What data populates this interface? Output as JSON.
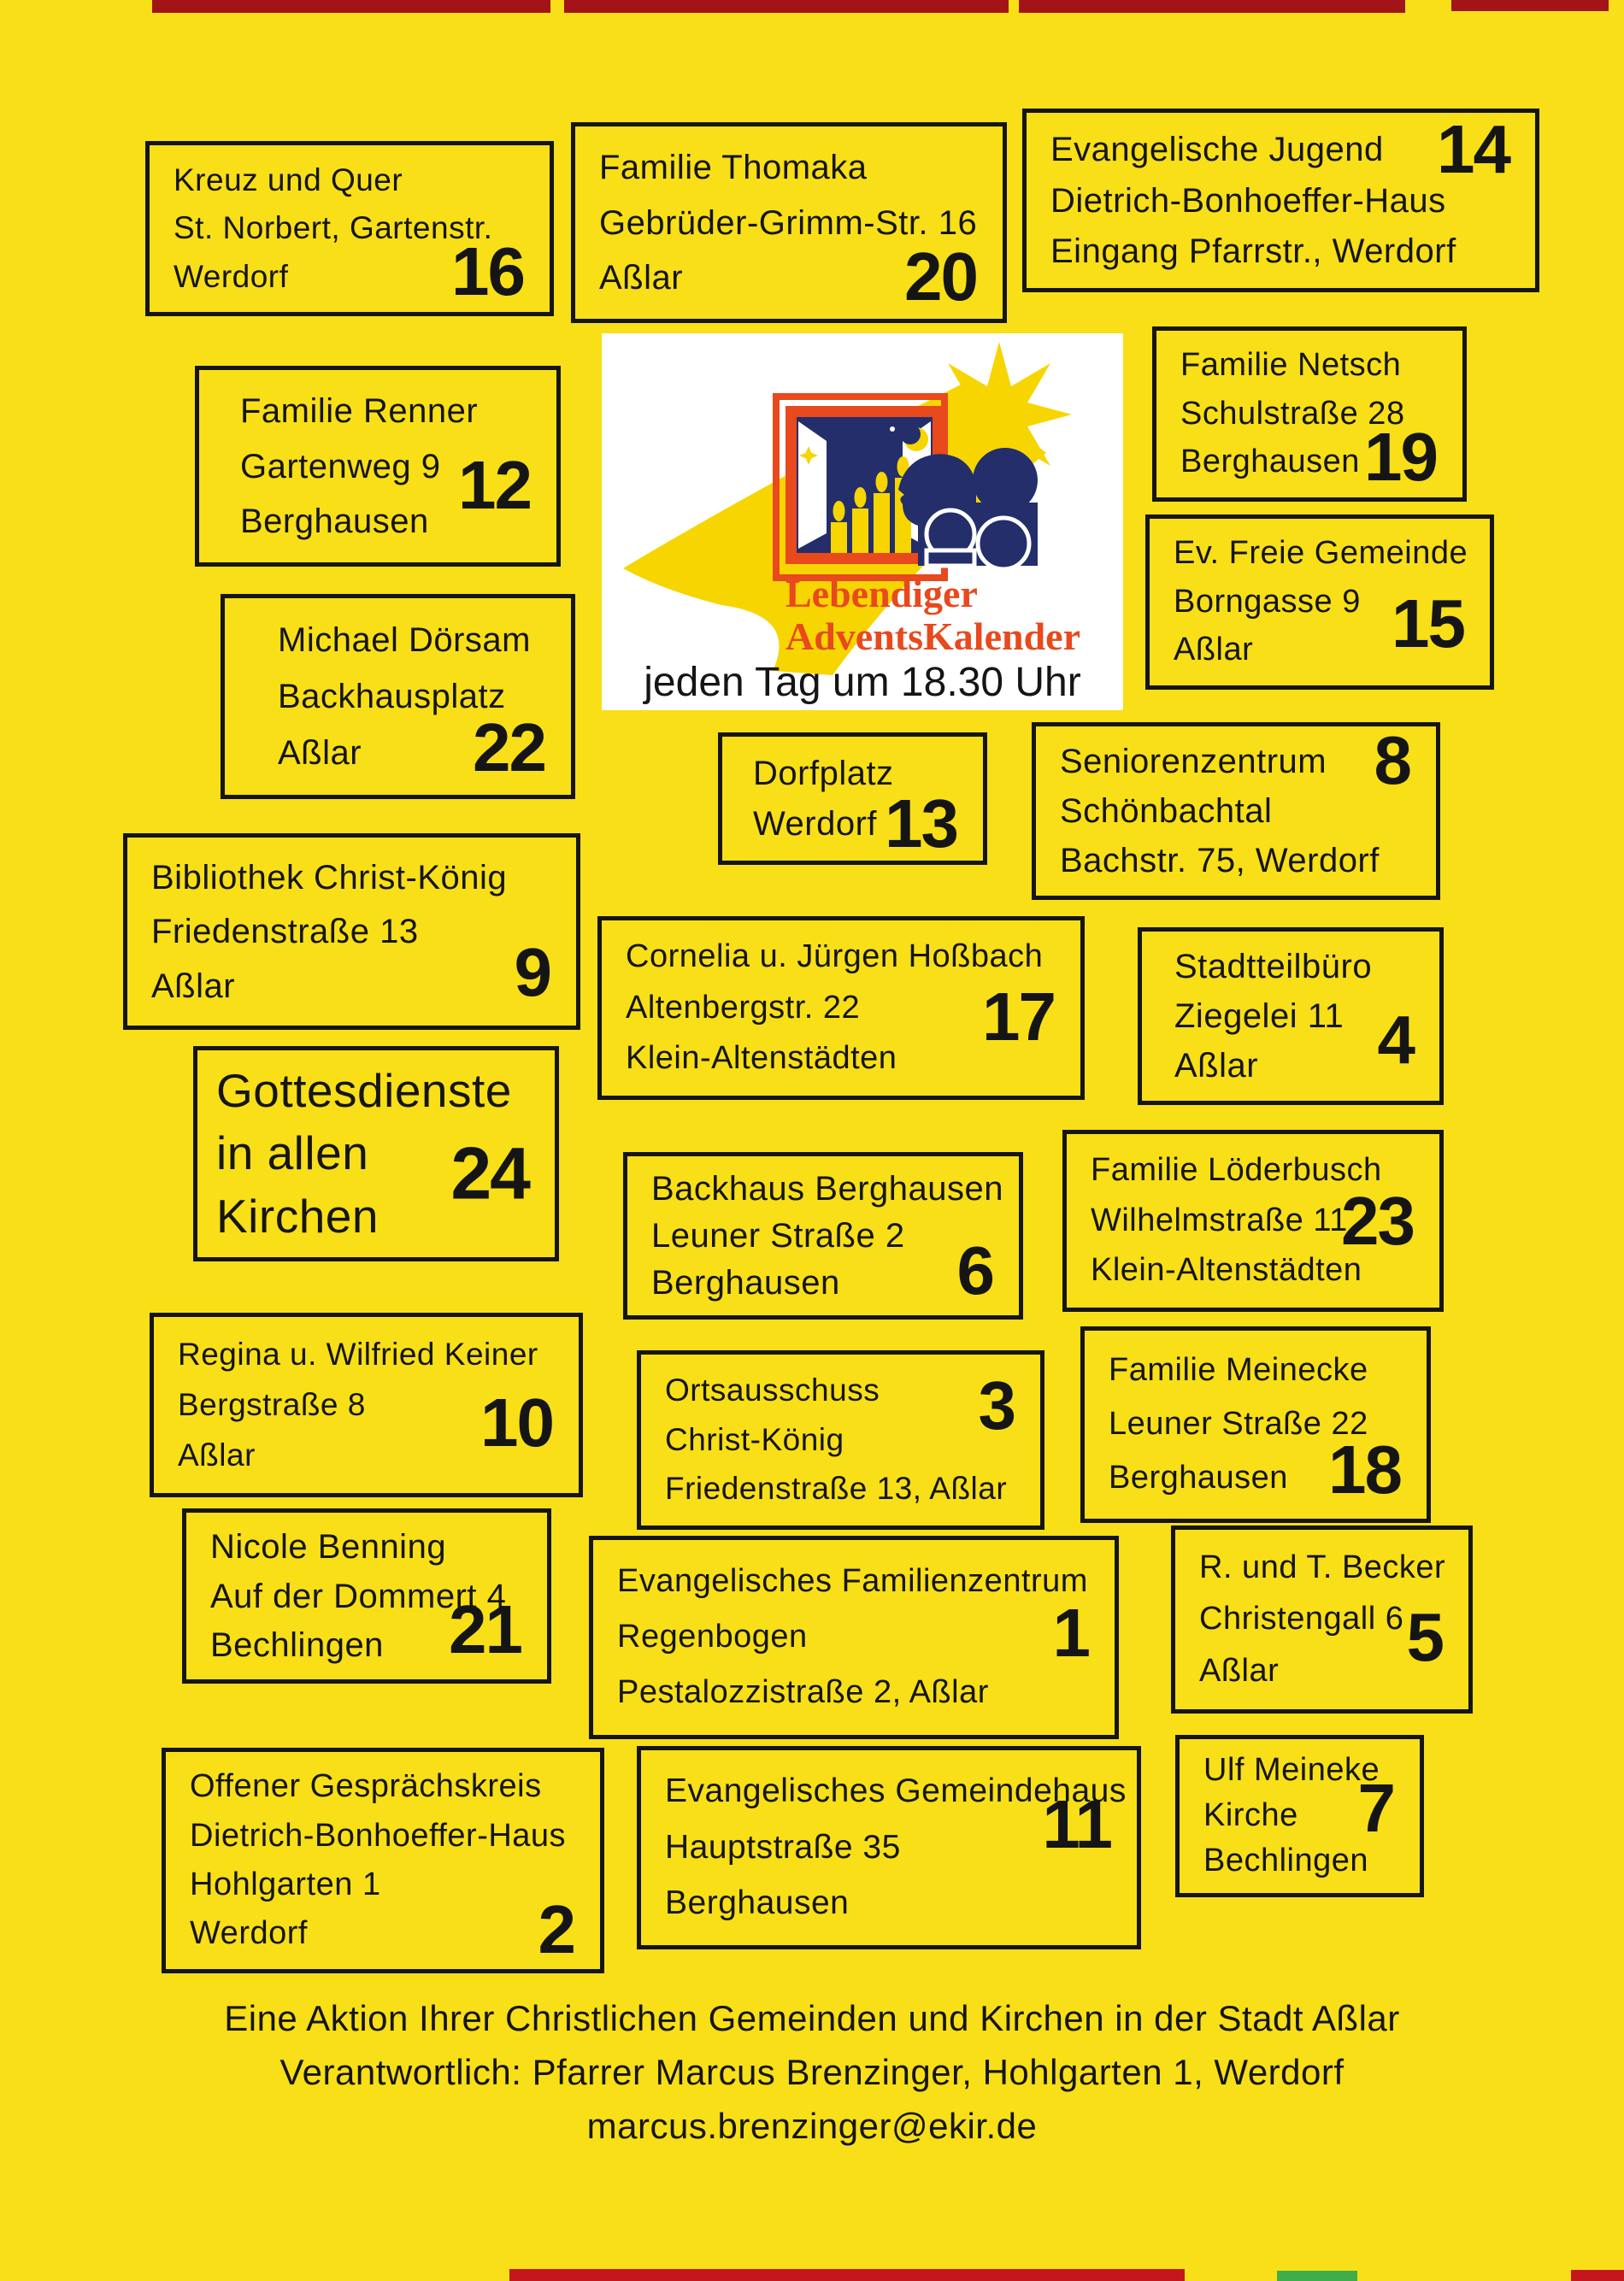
{
  "poster": {
    "logo": {
      "title_line1": "Lebendiger",
      "title_line2": "AdventsKalender",
      "subtitle": "jeden Tag um 18.30 Uhr"
    },
    "boxes": [
      {
        "id": "kreuz16",
        "number": "16",
        "lines": [
          "Kreuz und Quer",
          "St. Norbert, Gartenstr.",
          "Werdorf"
        ]
      },
      {
        "id": "thomaka20",
        "number": "20",
        "lines": [
          "Familie Thomaka",
          "Gebrüder-Grimm-Str. 16",
          "Aßlar"
        ]
      },
      {
        "id": "jugend14",
        "number": "14",
        "lines": [
          "Evangelische Jugend",
          "Dietrich-Bonhoeffer-Haus",
          "Eingang Pfarrstr., Werdorf"
        ]
      },
      {
        "id": "renner12",
        "number": "12",
        "lines": [
          "Familie Renner",
          "Gartenweg 9",
          "Berghausen"
        ]
      },
      {
        "id": "netsch19",
        "number": "19",
        "lines": [
          "Familie Netsch",
          "Schulstraße 28",
          "Berghausen"
        ]
      },
      {
        "id": "freie15",
        "number": "15",
        "lines": [
          "Ev. Freie Gemeinde",
          "Borngasse 9",
          "Aßlar"
        ]
      },
      {
        "id": "doersam22",
        "number": "22",
        "lines": [
          "Michael Dörsam",
          "Backhausplatz",
          "Aßlar"
        ]
      },
      {
        "id": "dorfplatz13",
        "number": "13",
        "lines": [
          "Dorfplatz",
          "Werdorf"
        ]
      },
      {
        "id": "senioren8",
        "number": "8",
        "lines": [
          "Seniorenzentrum",
          "Schönbachtal",
          "Bachstr. 75, Werdorf"
        ]
      },
      {
        "id": "bibliothek9",
        "number": "9",
        "lines": [
          "Bibliothek Christ-König",
          "Friedenstraße 13",
          "Aßlar"
        ]
      },
      {
        "id": "hossbach17",
        "number": "17",
        "lines": [
          "Cornelia u. Jürgen Hoßbach",
          "Altenbergstr. 22",
          "Klein-Altenstädten"
        ]
      },
      {
        "id": "stadtteil4",
        "number": "4",
        "lines": [
          "Stadtteilbüro",
          "Ziegelei 11",
          "Aßlar"
        ]
      },
      {
        "id": "gottesdienste24",
        "number": "24",
        "lines": [
          "Gottesdienste",
          "in allen",
          "Kirchen"
        ]
      },
      {
        "id": "backhaus6",
        "number": "6",
        "lines": [
          "Backhaus Berghausen",
          "Leuner Straße 2",
          "Berghausen"
        ]
      },
      {
        "id": "loederbusch23",
        "number": "23",
        "lines": [
          "Familie Löderbusch",
          "Wilhelmstraße 11",
          "Klein-Altenstädten"
        ]
      },
      {
        "id": "keiner10",
        "number": "10",
        "lines": [
          "Regina u. Wilfried Keiner",
          "Bergstraße 8",
          "Aßlar"
        ]
      },
      {
        "id": "ortsausschuss3",
        "number": "3",
        "lines": [
          "Ortsausschuss",
          "Christ-König",
          "Friedenstraße 13, Aßlar"
        ]
      },
      {
        "id": "meinecke18",
        "number": "18",
        "lines": [
          "Familie Meinecke",
          "Leuner Straße 22",
          "Berghausen"
        ]
      },
      {
        "id": "benning21",
        "number": "21",
        "lines": [
          "Nicole Benning",
          "Auf der Dommert 4",
          "Bechlingen"
        ]
      },
      {
        "id": "familienzentrum1",
        "number": "1",
        "lines": [
          "Evangelisches Familienzentrum",
          "Regenbogen",
          "Pestalozzistraße 2, Aßlar"
        ]
      },
      {
        "id": "becker5",
        "number": "5",
        "lines": [
          "R. und T. Becker",
          "Christengall 6",
          "Aßlar"
        ]
      },
      {
        "id": "ulf7",
        "number": "7",
        "lines": [
          "Ulf Meineke",
          "Kirche",
          "Bechlingen"
        ]
      },
      {
        "id": "gespraechskreis2",
        "number": "2",
        "lines": [
          "Offener Gesprächskreis",
          "Dietrich-Bonhoeffer-Haus",
          "Hohlgarten 1",
          "Werdorf"
        ]
      },
      {
        "id": "gemeindehaus11",
        "number": "11",
        "lines": [
          "Evangelisches Gemeindehaus",
          "Hauptstraße 35",
          "Berghausen"
        ]
      }
    ],
    "footer": {
      "line1": "Eine Aktion Ihrer Christlichen Gemeinden und Kirchen in der Stadt Aßlar",
      "line2": "Verantwortlich: Pfarrer Marcus Brenzinger, Hohlgarten 1, Werdorf",
      "line3": "marcus.brenzinger@ekir.de"
    },
    "colors": {
      "background": "#f8df17",
      "box_border": "#151515",
      "text": "#151515",
      "logo_panel": "#ffffff",
      "logo_orange": "#e8491d",
      "logo_navy": "#232e6b",
      "logo_star_yellow": "#f7d500",
      "mark_dark_red": "#a21417",
      "mark_red": "#c4161c",
      "mark_green": "#3fae49"
    }
  }
}
